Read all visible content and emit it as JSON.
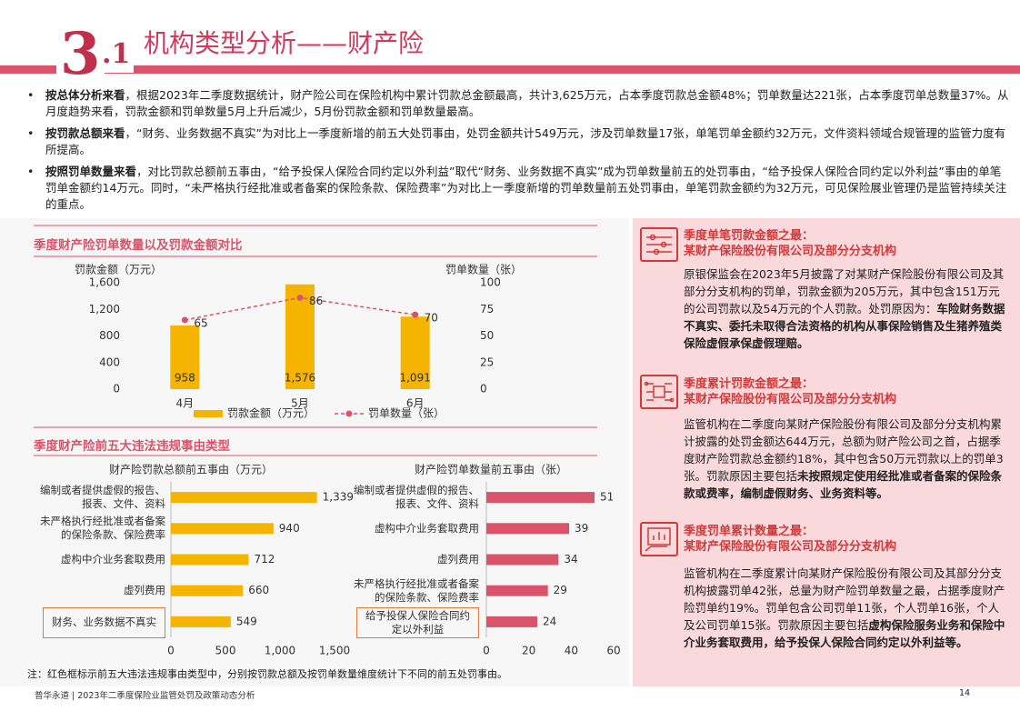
{
  "header": {
    "section_major": "3",
    "section_minor": ".1",
    "title": "机构类型分析——财产险"
  },
  "bullets": [
    {
      "lead": "按总体分析来看",
      "text": "，根据2023年二季度数据统计，财产险公司在保险机构中累计罚款总金额最高，共计3,625万元，占本季度罚款总金额48%；罚单数量达221张，占本季度罚单总数量37%。从月度趋势来看，罚款金额和罚单数量5月上升后减少，5月份罚款金额和罚单数量最高。"
    },
    {
      "lead": "按罚款总额来看",
      "text": "，“财务、业务数据不真实”为对比上一季度新增的前五大处罚事由，处罚金额共计549万元，涉及罚单数量17张，单笔罚单金额约32万元，文件资料领域合规管理的监管力度有所提高。"
    },
    {
      "lead": "按照罚单数量来看",
      "text": "，对比罚款总额前五事由，“给予投保人保险合同约定以外利益”取代“财务、业务数据不真实”成为罚单数量前五的处罚事由，“给予投保人保险合同约定以外利益”事由的单笔罚单金额约14万元。同时，“未严格执行经批准或者备案的保险条款、保险费率”为对比上一季度新增的罚单数量前五处罚事由，单笔罚款金额约为32万元，可见保险展业管理仍是监管持续关注的重点。"
    }
  ],
  "violation_section_title": "季度财产险前五大违法违规事由类型",
  "chart_data": [
    {
      "type": "bar",
      "title": "季度财产险罚单数量以及罚款金额对比",
      "categories": [
        "4月",
        "5月",
        "6月"
      ],
      "y_label": "罚款金额（万元）",
      "y2_label": "罚单数量（张）",
      "ylim": [
        0,
        1600
      ],
      "yticks": [
        0,
        400,
        800,
        {
          "value": 1200,
          "label": "1,200"
        },
        {
          "value": 1600,
          "label": "1,600"
        }
      ],
      "y2lim": [
        0,
        100
      ],
      "y2ticks": [
        0,
        25,
        50,
        75,
        100
      ],
      "series": [
        {
          "name": "罚款金额（万元）",
          "type": "bar",
          "color": "#f5b400",
          "values": [
            958,
            1576,
            1091
          ],
          "value_labels": [
            "958",
            "1,576",
            "1,091"
          ]
        },
        {
          "name": "罚单数量（张）",
          "type": "line",
          "axis": "y2",
          "color": "#d9536b",
          "values": [
            65,
            86,
            70
          ]
        }
      ]
    },
    {
      "type": "hbar",
      "title": "财产险罚款总额前五事由（万元）",
      "categories": [
        "编制或者提供虚假的报告、报表、文件、资料",
        "未严格执行经批准或者备案的保险条款、保险费率",
        "虚构中介业务套取费用",
        "虚列费用",
        "财务、业务数据不真实"
      ],
      "values": [
        1339,
        940,
        712,
        660,
        549
      ],
      "value_labels": [
        "1,339",
        "940",
        "712",
        "660",
        "549"
      ],
      "color": "#f5b400",
      "highlight": 4,
      "xlim": [
        0,
        1500
      ],
      "xticks": [
        0,
        500,
        {
          "value": 1000,
          "label": "1,000"
        },
        {
          "value": 1500,
          "label": "1,500"
        }
      ]
    },
    {
      "type": "hbar",
      "title": "财产险罚单数量前五事由（张）",
      "categories": [
        "编制或者提供虚假的报告、报表、文件、资料",
        "虚构中介业务套取费用",
        "虚列费用",
        "未严格执行经批准或者备案的保险条款、保险费率",
        "给予投保人保险合同约定以外利益"
      ],
      "values": [
        51,
        39,
        34,
        29,
        24
      ],
      "color": "#d9536b",
      "highlight": 4,
      "xlim": [
        0,
        60
      ],
      "xticks": [
        0,
        20,
        40,
        60
      ]
    }
  ],
  "note": "注：红色框标示前五大违法违规事由类型中，分别按罚款总额及按罚单数量维度统计下不同的前五处罚事由。",
  "cards": [
    {
      "title": "季度单笔罚款金额之最：",
      "subtitle": "某财产保险股份有限公司及部分分支机构",
      "body": [
        {
          "text": "原银保监会在2023年5月披露了对某财产保险股份有限公司及其部分分支机构的罚单，罚款金额为205万元，其中包含151万元的公司罚款以及54万元的个人罚款。处罚原因为：",
          "bold": false
        },
        {
          "text": "车险财务数据不真实、委托未取得合法资格的机构从事保险销售及生猪养殖类保险虚假承保虚假理赔。",
          "bold": true
        }
      ]
    },
    {
      "title": "季度累计罚款金额之最：",
      "subtitle": "某财产保险股份有限公司及部分分支机构",
      "body": [
        {
          "text": "监管机构在二季度向某财产保险股份有限公司及部分分支机构累计披露的处罚金额达644万元，总额为财产险公司之首，占据季度财产险罚款总金额约18%，其中包含50万元罚款以上的罚单3张。罚款原因主要包括",
          "bold": false
        },
        {
          "text": "未按照规定使用经批准或者备案的保险条款或费率，编制虚假财务、业务资料等。",
          "bold": true
        }
      ]
    },
    {
      "title": "季度罚单累计数量之最：",
      "subtitle": "某财产保险股份有限公司及部分分支机构",
      "body": [
        {
          "text": "监管机构在二季度累计向某财产保险股份有限公司及其部分分支机构披露罚单42张，总量为财产险罚单数量之最，占据季度财产险罚单约19%。罚单包含公司罚单11张，个人罚单16张，个人及公司罚单15张。罚款原因主要包括",
          "bold": false
        },
        {
          "text": "虚构保险服务业务和保险中介业务套取费用，给予投保人保险合同约定以外利益等。",
          "bold": true
        }
      ]
    }
  ],
  "footer": {
    "source": "普华永道 | 2023年二季度保险业监管处罚及政策动态分析",
    "page": "14"
  }
}
